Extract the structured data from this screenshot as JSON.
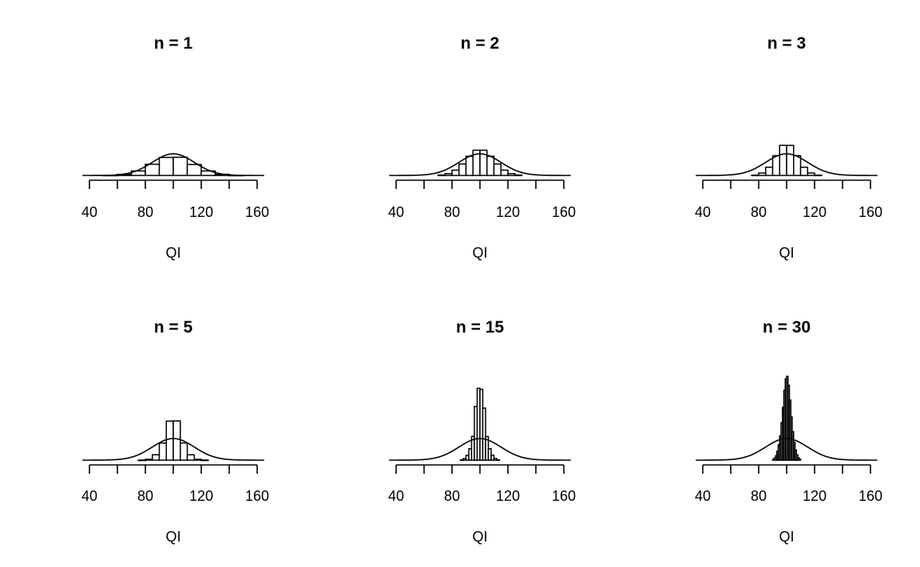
{
  "chart_data": [
    {
      "type": "bar",
      "title": "n = 1",
      "xlabel": "QI",
      "xlim": [
        40,
        160
      ],
      "xticks": [
        "40",
        "80",
        "120",
        "160"
      ],
      "bin_width": 10,
      "bin_starts": [
        50,
        60,
        70,
        80,
        90,
        100,
        110,
        120,
        130,
        140
      ],
      "values": [
        0.0002,
        0.0013,
        0.0055,
        0.0137,
        0.0221,
        0.0223,
        0.0134,
        0.0055,
        0.0014,
        0.0002
      ],
      "curve": {
        "mean": 100,
        "sd": 15
      },
      "ylim": [
        0,
        0.13
      ]
    },
    {
      "type": "bar",
      "title": "n = 2",
      "xlabel": "QI",
      "xlim": [
        40,
        160
      ],
      "xticks": [
        "40",
        "80",
        "120",
        "160"
      ],
      "bin_width": 5,
      "bin_starts": [
        70,
        75,
        80,
        85,
        90,
        95,
        100,
        105,
        110,
        115,
        120,
        125
      ],
      "values": [
        0.0005,
        0.0022,
        0.0065,
        0.0141,
        0.0236,
        0.031,
        0.031,
        0.0236,
        0.0141,
        0.0065,
        0.0022,
        0.0005
      ],
      "curve": {
        "mean": 100,
        "sd": 15
      },
      "ylim": [
        0,
        0.13
      ]
    },
    {
      "type": "bar",
      "title": "n = 3",
      "xlabel": "QI",
      "xlim": [
        40,
        160
      ],
      "xticks": [
        "40",
        "80",
        "120",
        "160"
      ],
      "bin_width": 5,
      "bin_starts": [
        75,
        80,
        85,
        90,
        95,
        100,
        105,
        110,
        115,
        120
      ],
      "values": [
        0.0004,
        0.0029,
        0.0101,
        0.0242,
        0.037,
        0.0369,
        0.0243,
        0.0101,
        0.003,
        0.0004
      ],
      "curve": {
        "mean": 100,
        "sd": 15
      },
      "ylim": [
        0,
        0.13
      ]
    },
    {
      "type": "bar",
      "title": "n = 5",
      "xlabel": "QI",
      "xlim": [
        40,
        160
      ],
      "xticks": [
        "40",
        "80",
        "120",
        "160"
      ],
      "bin_width": 5,
      "bin_starts": [
        75,
        80,
        85,
        90,
        95,
        100,
        105,
        110,
        115,
        120
      ],
      "values": [
        0.0001,
        0.001,
        0.0066,
        0.021,
        0.048,
        0.0482,
        0.021,
        0.0066,
        0.001,
        0.0001
      ],
      "curve": {
        "mean": 100,
        "sd": 15
      },
      "ylim": [
        0,
        0.13
      ]
    },
    {
      "type": "bar",
      "title": "n = 15",
      "xlabel": "QI",
      "xlim": [
        40,
        160
      ],
      "xticks": [
        "40",
        "80",
        "120",
        "160"
      ],
      "bin_width": 2,
      "bin_starts": [
        86,
        88,
        90,
        92,
        94,
        96,
        98,
        100,
        102,
        104,
        106,
        108,
        110,
        112
      ],
      "values": [
        0.0004,
        0.0019,
        0.0058,
        0.014,
        0.0292,
        0.066,
        0.0883,
        0.087,
        0.064,
        0.029,
        0.014,
        0.006,
        0.002,
        0.0004
      ],
      "curve": {
        "mean": 100,
        "sd": 15
      },
      "ylim": [
        0,
        0.13
      ]
    },
    {
      "type": "bar",
      "title": "n = 30",
      "xlabel": "QI",
      "xlim": [
        40,
        160
      ],
      "xticks": [
        "40",
        "80",
        "120",
        "160"
      ],
      "bin_width": 1,
      "bin_starts": [
        90,
        91,
        92,
        93,
        94,
        95,
        96,
        97,
        98,
        99,
        100,
        101,
        102,
        103,
        104,
        105,
        106,
        107,
        108,
        109
      ],
      "values": [
        0.001,
        0.0025,
        0.0055,
        0.011,
        0.019,
        0.03,
        0.046,
        0.065,
        0.086,
        0.1,
        0.103,
        0.092,
        0.074,
        0.053,
        0.035,
        0.022,
        0.0125,
        0.0065,
        0.003,
        0.0012
      ],
      "curve": {
        "mean": 100,
        "sd": 15
      },
      "ylim": [
        0,
        0.13
      ]
    }
  ]
}
